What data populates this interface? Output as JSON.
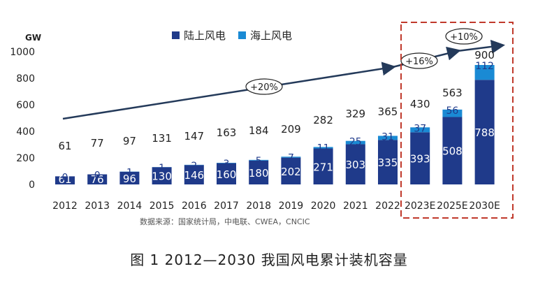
{
  "chart_data": {
    "type": "bar",
    "stacked": true,
    "ylabel": "GW",
    "ylim": [
      0,
      1000
    ],
    "yticks": [
      0,
      200,
      400,
      600,
      800,
      1000
    ],
    "categories": [
      "2012",
      "2013",
      "2014",
      "2015",
      "2016",
      "2017",
      "2018",
      "2019",
      "2020",
      "2021",
      "2022",
      "2023E",
      "2025E",
      "2030E"
    ],
    "series": [
      {
        "name": "陆上风电",
        "color": "#1f3a8a",
        "values": [
          61,
          76,
          96,
          130,
          146,
          160,
          180,
          202,
          271,
          303,
          335,
          393,
          508,
          788
        ]
      },
      {
        "name": "海上风电",
        "color": "#1a8ad4",
        "values": [
          0,
          0,
          1,
          1,
          2,
          3,
          5,
          7,
          11,
          25,
          31,
          37,
          56,
          112
        ]
      }
    ],
    "totals": [
      61,
      77,
      97,
      131,
      147,
      163,
      184,
      209,
      282,
      329,
      365,
      430,
      563,
      900
    ],
    "legend_position": "top",
    "grid": false,
    "annotations": [
      "+20%",
      "+16%",
      "+10%"
    ],
    "source": "数据来源：国家统计局，中电联、CWEA，CNCIC",
    "highlight_categories": [
      "2023E",
      "2025E",
      "2030E"
    ]
  },
  "caption": "图 1  2012—2030 我国风电累计装机容量"
}
